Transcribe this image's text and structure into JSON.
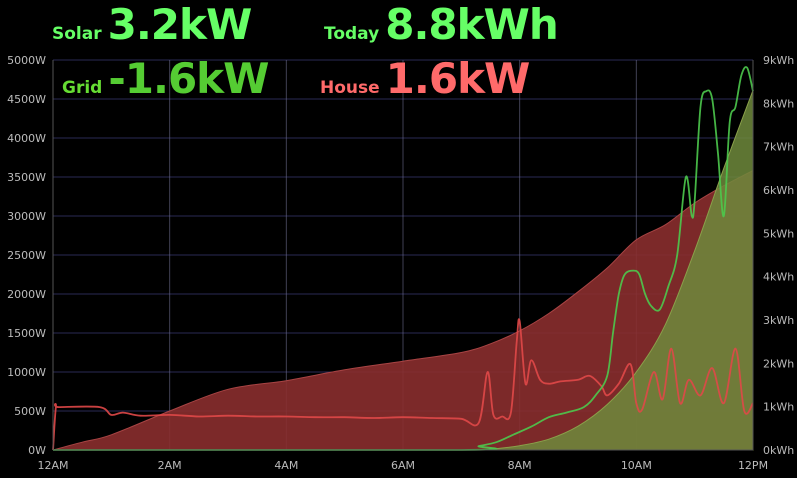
{
  "header": {
    "solar": {
      "label": "Solar",
      "value": "3.2kW"
    },
    "today": {
      "label": "Today",
      "value": "8.8kWh"
    },
    "grid": {
      "label": "Grid",
      "value": "-1.6kW"
    },
    "house": {
      "label": "House",
      "value": "1.6kW"
    }
  },
  "colors": {
    "background": "#000000",
    "solar_text": "#66ff66",
    "house_text": "#ff6a6a",
    "grid_lines": "#2a2a55",
    "vgrid_lines": "#777799",
    "solar_line": "#4cc94c",
    "house_line": "#e04848",
    "solar_energy_fill": "#6e8a3c",
    "house_energy_fill": "#8a2e2e",
    "overlap_fill": "#2e7a2e"
  },
  "chart_data": {
    "type": "area",
    "x_unit": "hours since 12AM",
    "xlim": [
      0,
      12
    ],
    "x_ticks": [
      {
        "x": 0,
        "label": "12AM"
      },
      {
        "x": 2,
        "label": "2AM"
      },
      {
        "x": 4,
        "label": "4AM"
      },
      {
        "x": 6,
        "label": "6AM"
      },
      {
        "x": 8,
        "label": "8AM"
      },
      {
        "x": 10,
        "label": "10AM"
      },
      {
        "x": 12,
        "label": "12PM"
      }
    ],
    "y_left": {
      "unit": "W",
      "lim": [
        0,
        5000
      ],
      "ticks": [
        "0W",
        "500W",
        "1000W",
        "1500W",
        "2000W",
        "2500W",
        "3000W",
        "3500W",
        "4000W",
        "4500W",
        "5000W"
      ]
    },
    "y_right": {
      "unit": "kWh",
      "lim": [
        0,
        9
      ],
      "ticks": [
        "0kWh",
        "1kWh",
        "2kWh",
        "3kWh",
        "4kWh",
        "5kWh",
        "6kWh",
        "7kWh",
        "8kWh",
        "9kWh"
      ]
    },
    "series": [
      {
        "key": "house_energy",
        "axis": "right",
        "kind": "area",
        "x": [
          0,
          0.5,
          1,
          2,
          3,
          4,
          5,
          6,
          7,
          7.5,
          8,
          8.5,
          9,
          9.5,
          10,
          10.5,
          11,
          11.5,
          12
        ],
        "values": [
          0,
          0.18,
          0.35,
          0.9,
          1.4,
          1.6,
          1.85,
          2.05,
          2.25,
          2.45,
          2.75,
          3.15,
          3.65,
          4.2,
          4.85,
          5.2,
          5.7,
          6.1,
          6.45
        ]
      },
      {
        "key": "solar_energy",
        "axis": "right",
        "kind": "area",
        "x": [
          0,
          7,
          7.5,
          8,
          8.5,
          9,
          9.5,
          10,
          10.5,
          11,
          11.5,
          12
        ],
        "values": [
          0,
          0,
          0.02,
          0.1,
          0.25,
          0.55,
          1.05,
          1.8,
          2.9,
          4.6,
          6.5,
          8.3
        ]
      },
      {
        "key": "house_power",
        "axis": "left",
        "kind": "line",
        "x": [
          0,
          0.05,
          0.1,
          0.8,
          1.0,
          1.2,
          1.5,
          2,
          2.5,
          3,
          3.5,
          4,
          4.5,
          5,
          5.5,
          6,
          6.5,
          7,
          7.3,
          7.45,
          7.55,
          7.7,
          7.85,
          7.95,
          8.0,
          8.1,
          8.2,
          8.35,
          8.5,
          8.7,
          9.0,
          9.2,
          9.4,
          9.5,
          9.7,
          9.9,
          10.0,
          10.1,
          10.3,
          10.45,
          10.6,
          10.75,
          10.9,
          11.1,
          11.3,
          11.5,
          11.7,
          11.85,
          12
        ],
        "values": [
          0,
          550,
          550,
          550,
          450,
          480,
          440,
          450,
          430,
          440,
          430,
          430,
          420,
          420,
          410,
          420,
          410,
          400,
          350,
          1000,
          450,
          430,
          480,
          1400,
          1650,
          850,
          1150,
          900,
          850,
          880,
          900,
          950,
          820,
          700,
          850,
          1100,
          600,
          520,
          1000,
          650,
          1300,
          600,
          900,
          700,
          1050,
          600,
          1300,
          500,
          600
        ]
      },
      {
        "key": "solar_power",
        "axis": "left",
        "kind": "line",
        "x": [
          0,
          7.0,
          7.3,
          7.6,
          7.9,
          8.2,
          8.5,
          8.8,
          9.1,
          9.3,
          9.5,
          9.6,
          9.7,
          9.8,
          9.95,
          10.05,
          10.15,
          10.25,
          10.4,
          10.55,
          10.7,
          10.85,
          10.95,
          11.0,
          11.1,
          11.2,
          11.3,
          11.4,
          11.5,
          11.6,
          11.7,
          11.8,
          11.9,
          12
        ],
        "values": [
          0,
          0,
          50,
          100,
          200,
          300,
          420,
          480,
          550,
          700,
          950,
          1500,
          2000,
          2250,
          2300,
          2250,
          2000,
          1850,
          1800,
          2100,
          2500,
          3500,
          3000,
          3200,
          4400,
          4600,
          4500,
          3800,
          3000,
          4200,
          4400,
          4800,
          4900,
          4600
        ]
      }
    ]
  }
}
